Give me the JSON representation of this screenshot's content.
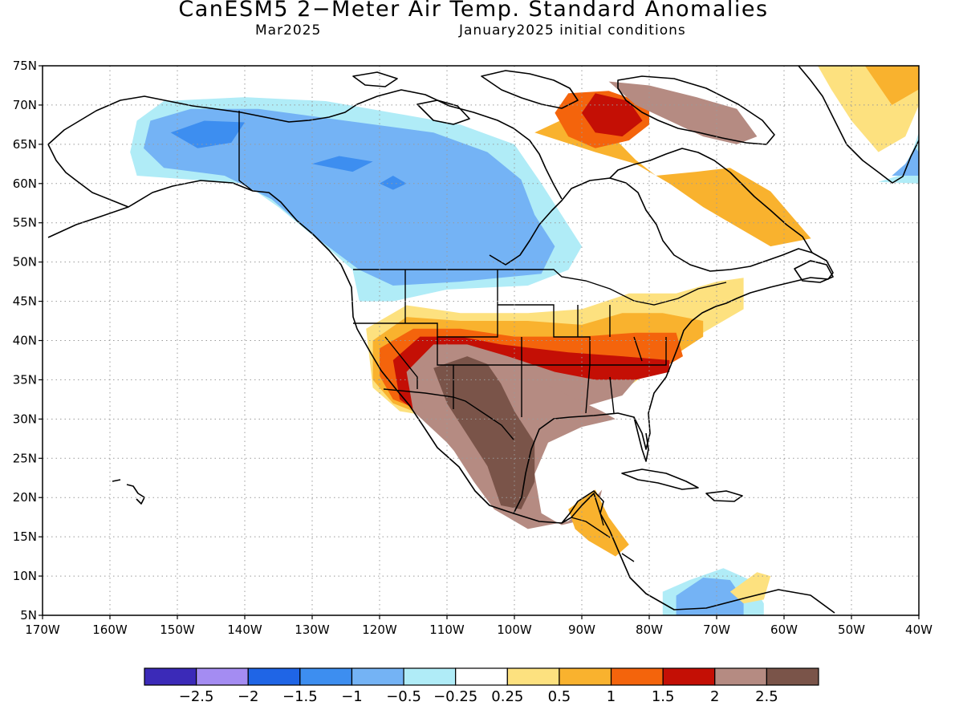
{
  "header": {
    "title": "CanESM5 2−Meter Air Temp. Standard Anomalies",
    "valid_month": "Mar2025",
    "init": "January2025 initial conditions"
  },
  "map": {
    "lon_range": [
      -170,
      -40
    ],
    "lat_range": [
      5,
      75
    ],
    "lat_ticks": [
      {
        "v": 75,
        "label": "75N"
      },
      {
        "v": 70,
        "label": "70N"
      },
      {
        "v": 65,
        "label": "65N"
      },
      {
        "v": 60,
        "label": "60N"
      },
      {
        "v": 55,
        "label": "55N"
      },
      {
        "v": 50,
        "label": "50N"
      },
      {
        "v": 45,
        "label": "45N"
      },
      {
        "v": 40,
        "label": "40N"
      },
      {
        "v": 35,
        "label": "35N"
      },
      {
        "v": 30,
        "label": "30N"
      },
      {
        "v": 25,
        "label": "25N"
      },
      {
        "v": 20,
        "label": "20N"
      },
      {
        "v": 15,
        "label": "15N"
      },
      {
        "v": 10,
        "label": "10N"
      },
      {
        "v": 5,
        "label": "5N"
      }
    ],
    "lon_ticks": [
      {
        "v": -170,
        "label": "170W"
      },
      {
        "v": -160,
        "label": "160W"
      },
      {
        "v": -150,
        "label": "150W"
      },
      {
        "v": -140,
        "label": "140W"
      },
      {
        "v": -130,
        "label": "130W"
      },
      {
        "v": -120,
        "label": "120W"
      },
      {
        "v": -110,
        "label": "110W"
      },
      {
        "v": -100,
        "label": "100W"
      },
      {
        "v": -90,
        "label": "90W"
      },
      {
        "v": -80,
        "label": "80W"
      },
      {
        "v": -70,
        "label": "70W"
      },
      {
        "v": -60,
        "label": "60W"
      },
      {
        "v": -50,
        "label": "50W"
      },
      {
        "v": -40,
        "label": "40W"
      }
    ],
    "anomaly_regions": [
      {
        "name": "alaska-yukon-cool",
        "cat": "-0.5",
        "pts": [
          [
            -156,
            68
          ],
          [
            -152,
            70.5
          ],
          [
            -140,
            71
          ],
          [
            -128,
            70.5
          ],
          [
            -118,
            69
          ],
          [
            -108,
            67.5
          ],
          [
            -100,
            65
          ],
          [
            -96,
            60
          ],
          [
            -93,
            56
          ],
          [
            -90,
            52
          ],
          [
            -92,
            49
          ],
          [
            -98,
            47
          ],
          [
            -110,
            46.5
          ],
          [
            -118,
            45
          ],
          [
            -123,
            45
          ],
          [
            -124,
            49
          ],
          [
            -128,
            52
          ],
          [
            -135,
            57
          ],
          [
            -140,
            60
          ],
          [
            -148,
            60.5
          ],
          [
            -156,
            61
          ],
          [
            -157,
            64
          ]
        ]
      },
      {
        "name": "canada-west-cool",
        "cat": "-1",
        "pts": [
          [
            -154,
            68
          ],
          [
            -148,
            69.5
          ],
          [
            -138,
            69.5
          ],
          [
            -125,
            68
          ],
          [
            -112,
            66.5
          ],
          [
            -104,
            64
          ],
          [
            -99,
            60.5
          ],
          [
            -97,
            56
          ],
          [
            -94,
            52
          ],
          [
            -96,
            48.5
          ],
          [
            -108,
            47.5
          ],
          [
            -118,
            47
          ],
          [
            -123,
            49
          ],
          [
            -130,
            53.5
          ],
          [
            -136,
            58
          ],
          [
            -143,
            61
          ],
          [
            -152,
            62
          ],
          [
            -155,
            64.5
          ]
        ]
      },
      {
        "name": "yukon-core-cool",
        "cat": "-1.5",
        "pts": [
          [
            -151,
            66.5
          ],
          [
            -146,
            68
          ],
          [
            -140,
            67.8
          ],
          [
            -142,
            65.2
          ],
          [
            -147,
            64.5
          ]
        ]
      },
      {
        "name": "nwt-core-cool",
        "cat": "-1.5",
        "pts": [
          [
            -130,
            62.5
          ],
          [
            -126,
            63.5
          ],
          [
            -121,
            62.8
          ],
          [
            -124,
            61.5
          ]
        ]
      },
      {
        "name": "hudson-core-cool",
        "cat": "-1.5",
        "pts": [
          [
            -120,
            60
          ],
          [
            -118,
            61
          ],
          [
            -116,
            60
          ],
          [
            -118,
            59.2
          ]
        ]
      },
      {
        "name": "venezuela-cool",
        "cat": "-0.5",
        "pts": [
          [
            -78,
            8
          ],
          [
            -74,
            9.5
          ],
          [
            -69,
            11
          ],
          [
            -65,
            9.5
          ],
          [
            -63,
            6.5
          ],
          [
            -63,
            5
          ],
          [
            -78,
            5
          ]
        ]
      },
      {
        "name": "venezuela-core-cool",
        "cat": "-1",
        "pts": [
          [
            -76,
            7.5
          ],
          [
            -72,
            9.8
          ],
          [
            -68,
            9.5
          ],
          [
            -66,
            7
          ],
          [
            -66,
            5
          ],
          [
            -76,
            5
          ]
        ]
      },
      {
        "name": "greenland-se-cool",
        "cat": "-0.5",
        "pts": [
          [
            -46,
            60.2
          ],
          [
            -43,
            61
          ],
          [
            -41,
            64
          ],
          [
            -40,
            66.5
          ],
          [
            -40,
            60
          ]
        ]
      },
      {
        "name": "greenland-se-core",
        "cat": "-1",
        "pts": [
          [
            -44,
            61
          ],
          [
            -42,
            62.5
          ],
          [
            -40.5,
            64.5
          ],
          [
            -40,
            64
          ],
          [
            -40,
            61
          ]
        ]
      },
      {
        "name": "us-warm-0.5",
        "cat": "0.25",
        "pts": [
          [
            -122,
            41.5
          ],
          [
            -116,
            44.5
          ],
          [
            -108,
            43.5
          ],
          [
            -98,
            43.5
          ],
          [
            -90,
            44
          ],
          [
            -83,
            46
          ],
          [
            -76,
            46
          ],
          [
            -70,
            47.5
          ],
          [
            -66,
            48
          ],
          [
            -66,
            44
          ],
          [
            -72,
            41
          ],
          [
            -80,
            36
          ],
          [
            -85,
            33
          ],
          [
            -92,
            31
          ],
          [
            -97,
            29
          ],
          [
            -104,
            28
          ],
          [
            -110,
            30
          ],
          [
            -117,
            31
          ],
          [
            -121,
            34
          ]
        ]
      },
      {
        "name": "us-warm-1",
        "cat": "0.5",
        "pts": [
          [
            -121,
            40
          ],
          [
            -116,
            43
          ],
          [
            -108,
            42.5
          ],
          [
            -98,
            42.5
          ],
          [
            -90,
            42
          ],
          [
            -84,
            43.5
          ],
          [
            -78,
            43.5
          ],
          [
            -72,
            42.5
          ],
          [
            -72,
            40.5
          ],
          [
            -80,
            36
          ],
          [
            -86,
            33
          ],
          [
            -93,
            31
          ],
          [
            -98,
            29
          ],
          [
            -105,
            28.5
          ],
          [
            -112,
            30
          ],
          [
            -118,
            32
          ],
          [
            -121,
            35
          ]
        ]
      },
      {
        "name": "us-warm-1.5",
        "cat": "1",
        "pts": [
          [
            -120,
            39
          ],
          [
            -115,
            41.5
          ],
          [
            -108,
            41.5
          ],
          [
            -100,
            40.5
          ],
          [
            -90,
            40.5
          ],
          [
            -82,
            41
          ],
          [
            -76,
            41
          ],
          [
            -75,
            38
          ],
          [
            -80,
            35.5
          ],
          [
            -88,
            33.5
          ],
          [
            -96,
            31.5
          ],
          [
            -104,
            30
          ],
          [
            -112,
            30.5
          ],
          [
            -118,
            32.5
          ],
          [
            -120,
            35.5
          ]
        ]
      },
      {
        "name": "us-warm-2",
        "cat": "1.5",
        "pts": [
          [
            -118,
            37.5
          ],
          [
            -114,
            40.5
          ],
          [
            -108,
            40.5
          ],
          [
            -102,
            39.5
          ],
          [
            -92,
            38.5
          ],
          [
            -84,
            38
          ],
          [
            -77,
            37.5
          ],
          [
            -77,
            36
          ],
          [
            -82,
            35
          ],
          [
            -90,
            33.5
          ],
          [
            -98,
            31.5
          ],
          [
            -106,
            29.5
          ],
          [
            -113,
            30
          ],
          [
            -117,
            32.5
          ]
        ]
      },
      {
        "name": "us-warm-2.5",
        "cat": "2",
        "pts": [
          [
            -116,
            36
          ],
          [
            -112,
            39.5
          ],
          [
            -107,
            39.5
          ],
          [
            -101,
            38
          ],
          [
            -94,
            36
          ],
          [
            -88,
            35
          ],
          [
            -82,
            35
          ],
          [
            -84,
            33
          ],
          [
            -92,
            31
          ],
          [
            -98,
            29
          ],
          [
            -100,
            22
          ],
          [
            -104,
            20
          ],
          [
            -106,
            23
          ],
          [
            -110,
            27
          ],
          [
            -115,
            31
          ]
        ]
      },
      {
        "name": "southwest-mexico-hot",
        "cat": "2.5",
        "pts": [
          [
            -115,
            36
          ],
          [
            -110,
            38.5
          ],
          [
            -105,
            37.5
          ],
          [
            -99,
            36
          ],
          [
            -92,
            33
          ],
          [
            -87,
            31
          ],
          [
            -85,
            30
          ],
          [
            -90,
            29
          ],
          [
            -95,
            27
          ],
          [
            -97,
            23
          ],
          [
            -96,
            18
          ],
          [
            -93,
            16.5
          ],
          [
            -88,
            17.5
          ],
          [
            -87,
            21
          ],
          [
            -89,
            19
          ],
          [
            -92,
            17
          ],
          [
            -98,
            16
          ],
          [
            -103,
            18.5
          ],
          [
            -106,
            22
          ],
          [
            -109,
            26
          ],
          [
            -113,
            30
          ]
        ]
      },
      {
        "name": "four-corners-core",
        "cat": "2.5+",
        "pts": [
          [
            -112,
            36.5
          ],
          [
            -107,
            38
          ],
          [
            -104,
            37
          ],
          [
            -102,
            34.5
          ],
          [
            -100,
            31
          ],
          [
            -97,
            27
          ],
          [
            -97,
            22
          ],
          [
            -99,
            18.5
          ],
          [
            -102,
            19
          ],
          [
            -104,
            24
          ],
          [
            -107,
            28
          ],
          [
            -110,
            32
          ]
        ]
      },
      {
        "name": "labrador-warm",
        "cat": "0.5",
        "pts": [
          [
            -97,
            66.5
          ],
          [
            -92,
            68.5
          ],
          [
            -86,
            66.5
          ],
          [
            -82,
            63
          ],
          [
            -79,
            61
          ],
          [
            -73,
            61.5
          ],
          [
            -68,
            62
          ],
          [
            -62,
            59
          ],
          [
            -58,
            55
          ],
          [
            -56,
            53
          ],
          [
            -62,
            52
          ],
          [
            -68,
            55
          ],
          [
            -72,
            57
          ],
          [
            -77,
            60
          ],
          [
            -82,
            62.5
          ],
          [
            -88,
            64
          ]
        ]
      },
      {
        "name": "baffin-warm",
        "cat": "1",
        "pts": [
          [
            -92,
            71.5
          ],
          [
            -86,
            71.8
          ],
          [
            -80,
            70
          ],
          [
            -80,
            67.5
          ],
          [
            -83,
            65.5
          ],
          [
            -88,
            64.5
          ],
          [
            -92,
            66
          ],
          [
            -94,
            69
          ]
        ]
      },
      {
        "name": "baffin-hot",
        "cat": "1.5",
        "pts": [
          [
            -88,
            71.5
          ],
          [
            -83,
            70.5
          ],
          [
            -81,
            68
          ],
          [
            -84,
            66
          ],
          [
            -88,
            66.5
          ],
          [
            -90,
            69
          ]
        ]
      },
      {
        "name": "ellesmere-hot",
        "cat": "2",
        "pts": [
          [
            -86,
            73
          ],
          [
            -80,
            72.5
          ],
          [
            -73,
            71
          ],
          [
            -67,
            69.5
          ],
          [
            -64,
            66
          ],
          [
            -67,
            65
          ],
          [
            -72,
            66
          ],
          [
            -77,
            68
          ],
          [
            -82,
            70
          ]
        ]
      },
      {
        "name": "greenland-warm",
        "cat": "0.25",
        "pts": [
          [
            -55,
            75
          ],
          [
            -47,
            75
          ],
          [
            -40,
            75
          ],
          [
            -40,
            70
          ],
          [
            -42,
            66
          ],
          [
            -46,
            64
          ],
          [
            -50,
            68
          ],
          [
            -53,
            72
          ]
        ]
      },
      {
        "name": "greenland-warm-core",
        "cat": "0.5",
        "pts": [
          [
            -48,
            75
          ],
          [
            -40,
            75
          ],
          [
            -40,
            72
          ],
          [
            -44,
            70
          ]
        ]
      },
      {
        "name": "central-america-warm",
        "cat": "0.5",
        "pts": [
          [
            -92,
            18.5
          ],
          [
            -88,
            21
          ],
          [
            -86,
            17.5
          ],
          [
            -83,
            14
          ],
          [
            -85,
            12.5
          ],
          [
            -89,
            14.5
          ],
          [
            -91,
            16
          ]
        ]
      },
      {
        "name": "caribbean-warm",
        "cat": "0.25",
        "pts": [
          [
            -68,
            8
          ],
          [
            -64,
            10.5
          ],
          [
            -62,
            10
          ],
          [
            -63,
            7
          ],
          [
            -66,
            6.5
          ]
        ]
      }
    ],
    "colorbar": {
      "colors": [
        "#3b2ab8",
        "#a48cf2",
        "#1f65e6",
        "#3d8ef0",
        "#74b3f5",
        "#b0ecf7",
        "#ffffff",
        "#fde17f",
        "#f9b22e",
        "#f4640c",
        "#c40f05",
        "#b58b82",
        "#7a5449"
      ],
      "labels": [
        "−2.5",
        "−2",
        "−1.5",
        "−1",
        "−0.5",
        "−0.25",
        "0.25",
        "0.5",
        "1",
        "1.5",
        "2",
        "2.5"
      ]
    }
  }
}
